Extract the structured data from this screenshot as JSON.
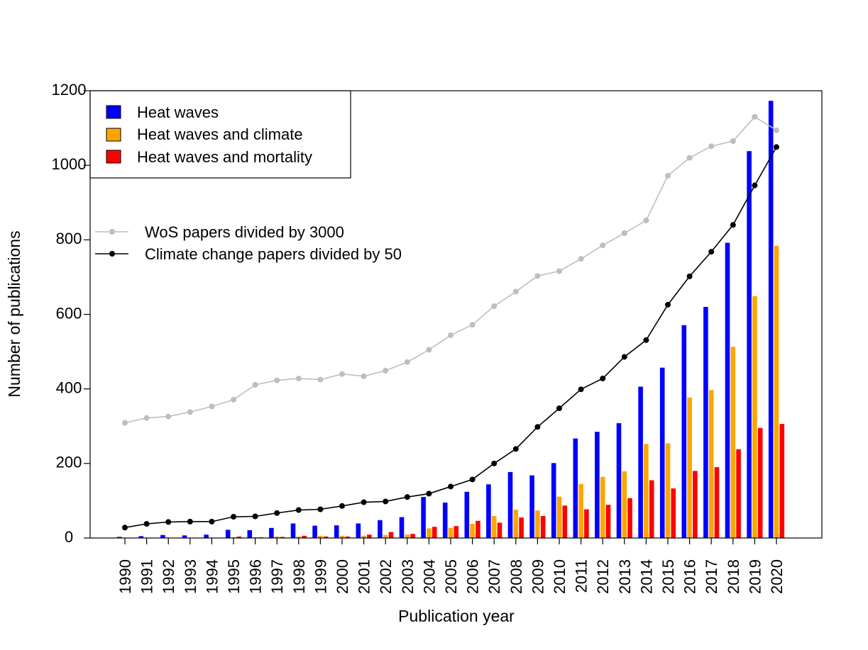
{
  "chart_data": {
    "type": "bar",
    "title": "",
    "xlabel": "Publication year",
    "ylabel": "Number of publications",
    "ylim": [
      0,
      1200
    ],
    "yticks": [
      0,
      200,
      400,
      600,
      800,
      1000,
      1200
    ],
    "categories": [
      "1990",
      "1991",
      "1992",
      "1993",
      "1994",
      "1995",
      "1996",
      "1997",
      "1998",
      "1999",
      "2000",
      "2001",
      "2002",
      "2003",
      "2004",
      "2005",
      "2006",
      "2007",
      "2008",
      "2009",
      "2010",
      "2011",
      "2012",
      "2013",
      "2014",
      "2015",
      "2016",
      "2017",
      "2018",
      "2019",
      "2020"
    ],
    "series": [
      {
        "name": "Heat waves",
        "color": "#0000ff",
        "values": [
          3,
          5,
          8,
          7,
          9,
          22,
          21,
          27,
          39,
          33,
          34,
          39,
          48,
          56,
          110,
          95,
          124,
          144,
          177,
          168,
          201,
          267,
          285,
          308,
          406,
          457,
          571,
          620,
          792,
          1038,
          1173
        ]
      },
      {
        "name": "Heat waves and climate",
        "color": "#ffa500",
        "values": [
          1,
          1,
          1,
          1,
          1,
          2,
          2,
          4,
          4,
          6,
          6,
          6,
          8,
          9,
          26,
          27,
          38,
          59,
          76,
          74,
          111,
          145,
          164,
          179,
          252,
          254,
          377,
          397,
          513,
          649,
          784
        ]
      },
      {
        "name": "Heat waves and mortality",
        "color": "#ff0000",
        "values": [
          0,
          1,
          0,
          0,
          0,
          4,
          2,
          3,
          6,
          4,
          4,
          9,
          16,
          11,
          30,
          32,
          46,
          41,
          55,
          59,
          87,
          77,
          89,
          107,
          155,
          133,
          180,
          190,
          238,
          295,
          306
        ]
      }
    ],
    "lines": [
      {
        "name": "WoS papers divided by 3000",
        "color": "#bebebe",
        "values": [
          309,
          322,
          326,
          338,
          353,
          371,
          411,
          423,
          428,
          425,
          440,
          434,
          449,
          472,
          505,
          544,
          572,
          622,
          661,
          703,
          716,
          749,
          785,
          818,
          852,
          972,
          1020,
          1051,
          1065,
          1130,
          1094
        ]
      },
      {
        "name": "Climate change papers divided by 50",
        "color": "#000000",
        "values": [
          28,
          38,
          43,
          44,
          44,
          57,
          58,
          67,
          75,
          77,
          86,
          96,
          98,
          110,
          119,
          138,
          157,
          200,
          239,
          298,
          348,
          399,
          428,
          486,
          531,
          626,
          702,
          768,
          840,
          946,
          1049
        ]
      }
    ],
    "legend_bars_position": "top-left",
    "legend_lines_position": "upper-left"
  }
}
